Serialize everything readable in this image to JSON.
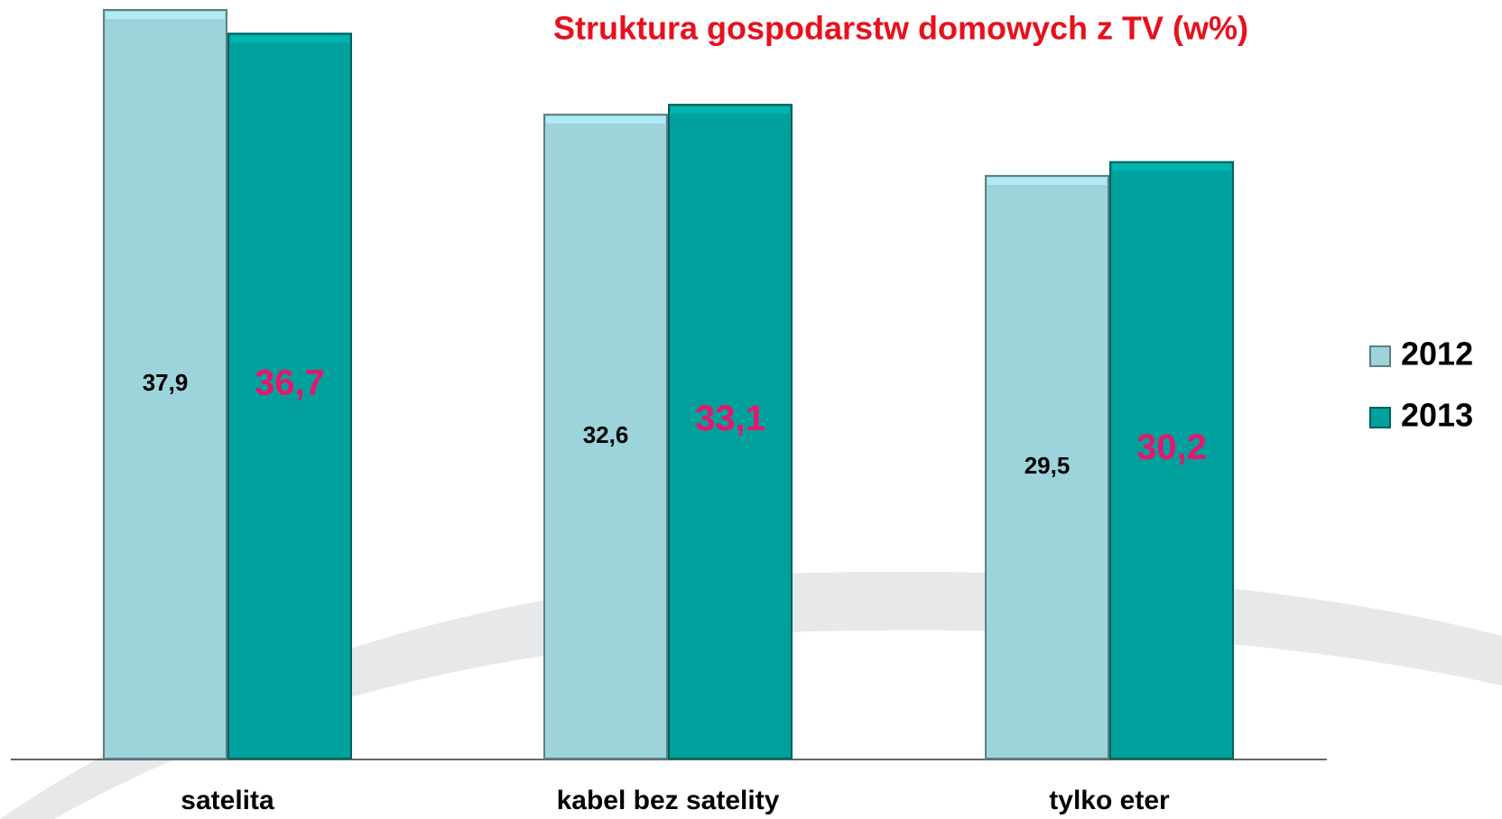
{
  "chart_data": {
    "type": "bar",
    "title": "Struktura gospodarstw domowych z TV (w%)",
    "categories": [
      "satelita",
      "kabel bez satelity",
      "tylko eter"
    ],
    "series": [
      {
        "name": "2012",
        "color": "#9dd3da",
        "values": [
          37.9,
          32.6,
          29.5
        ],
        "value_labels": [
          "37,9",
          "32,6",
          "29,5"
        ]
      },
      {
        "name": "2013",
        "color": "#00a19d",
        "values": [
          36.7,
          33.1,
          30.2
        ],
        "value_labels": [
          "36,7",
          "33,1",
          "30,2"
        ]
      }
    ],
    "legend": "right"
  }
}
